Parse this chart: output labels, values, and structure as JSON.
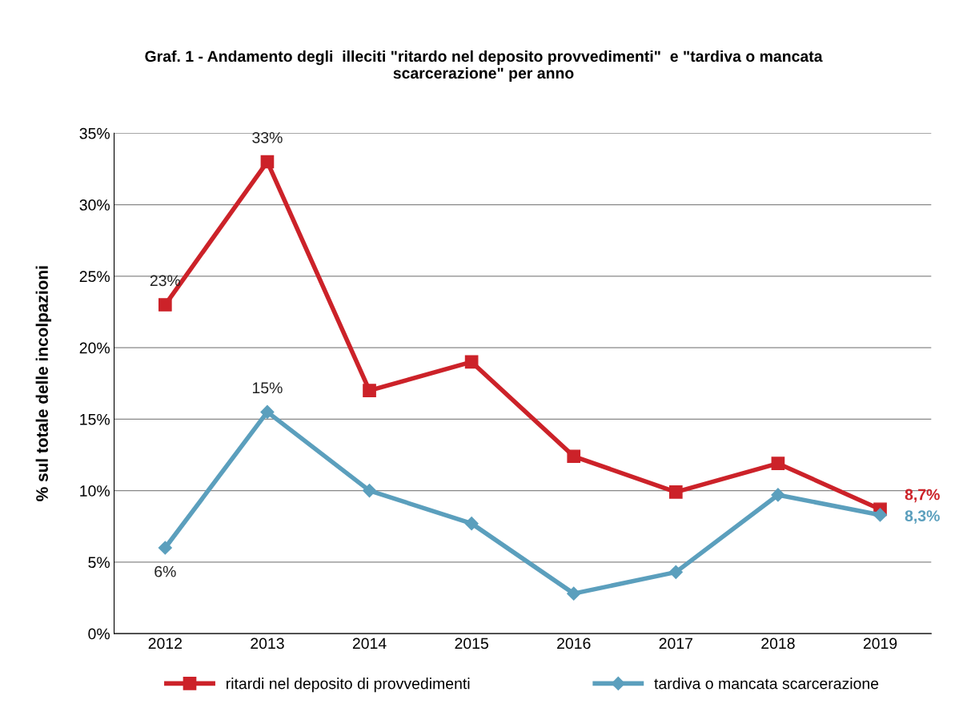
{
  "chart_data": {
    "type": "line",
    "title": "Graf. 1 - Andamento degli  illeciti \"ritardo nel deposito provvedimenti\"  e \"tardiva o mancata\nscarcerazione\" per anno",
    "ylabel": "% sul totale delle incolpazioni",
    "categories": [
      "2012",
      "2013",
      "2014",
      "2015",
      "2016",
      "2017",
      "2018",
      "2019"
    ],
    "series": [
      {
        "name": "ritardi nel deposito di provvedimenti",
        "color": "#cc2229",
        "marker": "square",
        "values": [
          23,
          33,
          17,
          19,
          12.4,
          9.9,
          11.9,
          8.7
        ],
        "value_labels": [
          "23%",
          "33%",
          null,
          null,
          null,
          null,
          null,
          "8,7%"
        ]
      },
      {
        "name": "tardiva o mancata scarcerazione",
        "color": "#5b9fbd",
        "marker": "diamond",
        "values": [
          6,
          15.5,
          10,
          7.7,
          2.8,
          4.3,
          9.7,
          8.3
        ],
        "value_labels": [
          "6%",
          "15%",
          null,
          null,
          null,
          null,
          null,
          "8,3%"
        ]
      }
    ],
    "ylim": [
      0,
      35
    ],
    "yticks": [
      {
        "value": 0,
        "label": "0%"
      },
      {
        "value": 5,
        "label": "5%"
      },
      {
        "value": 10,
        "label": "10%"
      },
      {
        "value": 15,
        "label": "15%"
      },
      {
        "value": 20,
        "label": "20%"
      },
      {
        "value": 25,
        "label": "25%"
      },
      {
        "value": 30,
        "label": "30%"
      },
      {
        "value": 35,
        "label": "35%"
      }
    ],
    "grid": "y",
    "legend": "bottom",
    "line_style": "solid"
  }
}
